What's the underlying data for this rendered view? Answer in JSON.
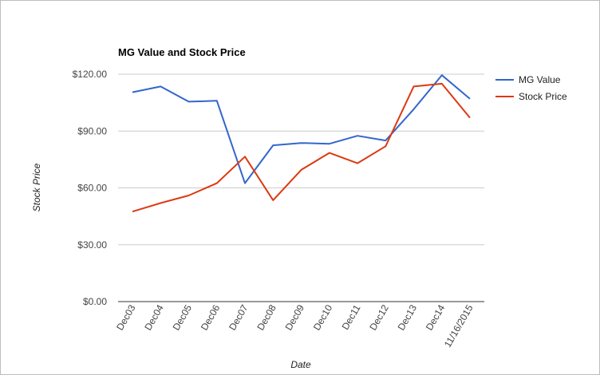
{
  "chart_data": {
    "type": "line",
    "title": "MG Value and Stock Price",
    "xlabel": "Date",
    "ylabel": "Stock Price",
    "categories": [
      "Dec03",
      "Dec04",
      "Dec05",
      "Dec06",
      "Dec07",
      "Dec08",
      "Dec09",
      "Dec10",
      "Dec11",
      "Dec12",
      "Dec13",
      "Dec14",
      "11/16/2015"
    ],
    "yticks": [
      "$0.00",
      "$30.00",
      "$60.00",
      "$90.00",
      "$120.00"
    ],
    "ylim": [
      0,
      120
    ],
    "grid": true,
    "legend_position": "right",
    "series": [
      {
        "name": "MG Value",
        "color": "#3366cc",
        "values": [
          110.5,
          113.5,
          105.5,
          106,
          62.5,
          82.5,
          83.7,
          83.3,
          87.5,
          85,
          101.5,
          119.5,
          107
        ]
      },
      {
        "name": "Stock Price",
        "color": "#dc3912",
        "values": [
          47.5,
          52,
          56,
          62.5,
          76.5,
          53.5,
          69.5,
          78.5,
          73,
          82,
          113.5,
          115,
          97
        ]
      }
    ]
  }
}
